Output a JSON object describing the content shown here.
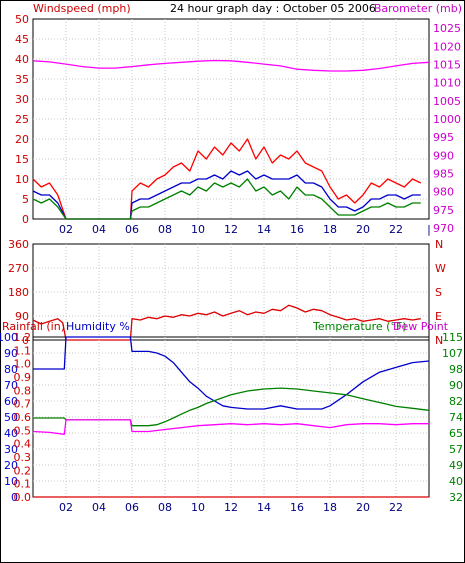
{
  "chart_data": [
    {
      "type": "line",
      "title": "24 hour graph day : October 05 2006",
      "left_axis_label": "Windspeed (mph)",
      "right_axis_label": "Barometer (mb)",
      "x_ticks": [
        "02",
        "04",
        "06",
        "08",
        "10",
        "12",
        "14",
        "16",
        "18",
        "20",
        "22",
        "|"
      ],
      "x_tick_hours": [
        2,
        4,
        6,
        8,
        10,
        12,
        14,
        16,
        18,
        20,
        22,
        24
      ],
      "xlim": [
        0,
        24
      ],
      "left_ticks": [
        "0",
        "5",
        "10",
        "15",
        "20",
        "25",
        "30",
        "35",
        "40",
        "45",
        "50"
      ],
      "ylim_left": [
        0,
        50
      ],
      "right_ticks": [
        "970",
        "975",
        "980",
        "985",
        "990",
        "995",
        "1000",
        "1005",
        "1010",
        "1015",
        "1020",
        "1025"
      ],
      "ylim_right": [
        972.5,
        1027.5
      ],
      "grid": true,
      "series": [
        {
          "axis": "right",
          "color": "#ff00ff",
          "x": [
            0,
            1,
            2,
            3,
            4,
            5,
            6,
            7,
            8,
            9,
            10,
            11,
            12,
            13,
            14,
            15,
            16,
            17,
            18,
            19,
            20,
            21,
            22,
            23,
            24
          ],
          "y": [
            1016.0,
            1015.7,
            1015.1,
            1014.4,
            1014.0,
            1014.0,
            1014.4,
            1014.9,
            1015.3,
            1015.6,
            1015.9,
            1016.1,
            1016.0,
            1015.6,
            1015.1,
            1014.6,
            1013.7,
            1013.4,
            1013.2,
            1013.2,
            1013.4,
            1013.9,
            1014.6,
            1015.3,
            1015.6
          ]
        },
        {
          "axis": "left",
          "color": "#ff0000",
          "x": [
            0,
            0.5,
            1,
            1.5,
            2,
            2.5,
            3,
            4,
            5,
            5.9,
            6,
            6.5,
            7,
            7.5,
            8,
            8.5,
            9,
            9.5,
            10,
            10.5,
            11,
            11.5,
            12,
            12.5,
            13,
            13.5,
            14,
            14.5,
            15,
            15.5,
            16,
            16.5,
            17,
            17.5,
            18,
            18.5,
            19,
            19.5,
            20,
            20.5,
            21,
            21.5,
            22,
            22.5,
            23,
            23.5
          ],
          "y": [
            10,
            8,
            9,
            6,
            0,
            0,
            0,
            0,
            0,
            0,
            7,
            9,
            8,
            10,
            11,
            13,
            14,
            12,
            17,
            15,
            18,
            16,
            19,
            17,
            20,
            15,
            18,
            14,
            16,
            15,
            17,
            14,
            13,
            12,
            8,
            5,
            6,
            4,
            6,
            9,
            8,
            10,
            9,
            8,
            10,
            9
          ]
        },
        {
          "axis": "left",
          "color": "#0000cc",
          "x": [
            0,
            0.5,
            1,
            1.5,
            2,
            2.5,
            3,
            4,
            5,
            5.9,
            6,
            6.5,
            7,
            7.5,
            8,
            8.5,
            9,
            9.5,
            10,
            10.5,
            11,
            11.5,
            12,
            12.5,
            13,
            13.5,
            14,
            14.5,
            15,
            15.5,
            16,
            16.5,
            17,
            17.5,
            18,
            18.5,
            19,
            19.5,
            20,
            20.5,
            21,
            21.5,
            22,
            22.5,
            23,
            23.5
          ],
          "y": [
            7,
            6,
            6,
            4,
            0,
            0,
            0,
            0,
            0,
            0,
            4,
            5,
            5,
            6,
            7,
            8,
            9,
            9,
            10,
            10,
            11,
            10,
            12,
            11,
            12,
            10,
            11,
            10,
            10,
            10,
            11,
            9,
            9,
            8,
            5,
            3,
            3,
            2,
            3,
            5,
            5,
            6,
            6,
            5,
            6,
            6
          ]
        },
        {
          "axis": "left",
          "color": "#008000",
          "x": [
            0,
            0.5,
            1,
            1.5,
            2,
            2.5,
            3,
            4,
            5,
            5.9,
            6,
            6.5,
            7,
            7.5,
            8,
            8.5,
            9,
            9.5,
            10,
            10.5,
            11,
            11.5,
            12,
            12.5,
            13,
            13.5,
            14,
            14.5,
            15,
            15.5,
            16,
            16.5,
            17,
            17.5,
            18,
            18.5,
            19,
            19.5,
            20,
            20.5,
            21,
            21.5,
            22,
            22.5,
            23,
            23.5
          ],
          "y": [
            5,
            4,
            5,
            3,
            0,
            0,
            0,
            0,
            0,
            0,
            2,
            3,
            3,
            4,
            5,
            6,
            7,
            6,
            8,
            7,
            9,
            8,
            9,
            8,
            10,
            7,
            8,
            6,
            7,
            5,
            8,
            6,
            6,
            5,
            3,
            1,
            1,
            1,
            2,
            3,
            3,
            4,
            3,
            3,
            4,
            4
          ]
        }
      ]
    },
    {
      "type": "line",
      "title": "",
      "x_ticks": [
        "02",
        "04",
        "06",
        "08",
        "10",
        "12",
        "14",
        "16",
        "18",
        "20",
        "22"
      ],
      "x_tick_hours": [
        2,
        4,
        6,
        8,
        10,
        12,
        14,
        16,
        18,
        20,
        22
      ],
      "xlim": [
        0,
        24
      ],
      "left_ticks": [
        "0",
        "90",
        "180",
        "270",
        "360"
      ],
      "ylim_left": [
        0,
        360
      ],
      "right_ticks": [
        "N",
        "E",
        "S",
        "W",
        "N"
      ],
      "grid": true,
      "series": [
        {
          "axis": "left",
          "color": "#dd0000",
          "x": [
            0,
            0.5,
            1,
            1.5,
            1.8,
            2,
            3,
            4,
            5,
            5.9,
            6,
            6.5,
            7,
            7.5,
            8,
            8.5,
            9,
            9.5,
            10,
            10.5,
            11,
            11.5,
            12,
            12.5,
            13,
            13.5,
            14,
            14.5,
            15,
            15.5,
            16,
            16.5,
            17,
            17.5,
            18,
            18.5,
            19,
            19.5,
            20,
            20.5,
            21,
            21.5,
            22,
            22.5,
            23,
            23.5
          ],
          "y": [
            75,
            60,
            70,
            80,
            65,
            0,
            0,
            0,
            0,
            0,
            80,
            75,
            85,
            80,
            90,
            85,
            95,
            90,
            100,
            95,
            105,
            90,
            100,
            110,
            95,
            105,
            100,
            115,
            110,
            130,
            120,
            105,
            115,
            110,
            95,
            85,
            75,
            80,
            70,
            75,
            80,
            70,
            75,
            80,
            75,
            80
          ]
        }
      ]
    },
    {
      "type": "line",
      "title": "",
      "labels": [
        "Rainfall (in)",
        "Humidity %",
        "Temperature (°F)",
        "Dew Point"
      ],
      "x_ticks": [
        "02",
        "04",
        "06",
        "08",
        "10",
        "12",
        "14",
        "16",
        "18",
        "20",
        "22"
      ],
      "x_tick_hours": [
        2,
        4,
        6,
        8,
        10,
        12,
        14,
        16,
        18,
        20,
        22
      ],
      "xlim": [
        0,
        24
      ],
      "humidity_ticks": [
        "0",
        "10",
        "20",
        "30",
        "40",
        "50",
        "60",
        "70",
        "80",
        "90",
        "100"
      ],
      "ylim_humidity": [
        0,
        100
      ],
      "rain_ticks": [
        "0.0",
        "0.1",
        "0.2",
        "0.3",
        "0.4",
        "0.5",
        "0.6",
        "0.7",
        "0.8",
        "0.9",
        "1.0",
        "1.1",
        "1.2"
      ],
      "ylim_rain": [
        0,
        1.2
      ],
      "temp_ticks": [
        "32",
        "40",
        "49",
        "57",
        "65",
        "74",
        "82",
        "90",
        "98",
        "107",
        "115"
      ],
      "ylim_temp": [
        32,
        115
      ],
      "grid": true,
      "series": [
        {
          "name": "Humidity %",
          "axis": "humidity",
          "color": "#0000cc",
          "x": [
            0,
            1.9,
            2,
            3,
            4,
            5,
            5.9,
            6,
            7,
            7.5,
            8,
            8.5,
            9,
            9.5,
            10,
            10.5,
            11,
            11.5,
            12,
            13,
            14,
            15,
            16,
            17,
            17.5,
            18,
            19,
            20,
            21,
            22,
            23,
            24
          ],
          "y": [
            80,
            80,
            100,
            100,
            100,
            100,
            100,
            91,
            91,
            90,
            88,
            84,
            78,
            72,
            68,
            63,
            60,
            57,
            56,
            55,
            55,
            57,
            55,
            55,
            55,
            57,
            64,
            72,
            78,
            81,
            84,
            85
          ]
        },
        {
          "name": "Temperature (°F)",
          "axis": "temp",
          "color": "#008000",
          "x": [
            0,
            1.9,
            2,
            3,
            4,
            5,
            5.9,
            6,
            7,
            7.5,
            8,
            8.5,
            9,
            9.5,
            10,
            10.5,
            11,
            12,
            13,
            14,
            15,
            16,
            17,
            18,
            19,
            20,
            21,
            22,
            23,
            24
          ],
          "y": [
            73,
            73,
            72,
            72,
            72,
            72,
            72,
            69,
            69,
            69.5,
            71,
            73,
            75,
            77,
            78.5,
            80.5,
            82,
            85,
            87,
            88,
            88.5,
            88,
            87,
            86,
            85,
            83,
            81,
            79,
            78,
            77
          ]
        },
        {
          "name": "Dew Point",
          "axis": "temp",
          "color": "#ff00ff",
          "x": [
            0,
            1,
            1.9,
            2,
            3,
            4,
            5,
            5.9,
            6,
            7,
            8,
            9,
            10,
            11,
            12,
            13,
            14,
            15,
            16,
            17,
            18,
            19,
            20,
            21,
            22,
            23,
            24
          ],
          "y": [
            66,
            65.5,
            64.5,
            72,
            72,
            72,
            72,
            72,
            66,
            66,
            67,
            68,
            69,
            69.5,
            70,
            69.5,
            70,
            69.5,
            70,
            69,
            68,
            69.5,
            70,
            70,
            69.5,
            70,
            70
          ]
        },
        {
          "name": "Rainfall (in)",
          "axis": "rain",
          "color": "#dd0000",
          "x": [
            0,
            24
          ],
          "y": [
            0,
            0
          ]
        }
      ]
    }
  ]
}
